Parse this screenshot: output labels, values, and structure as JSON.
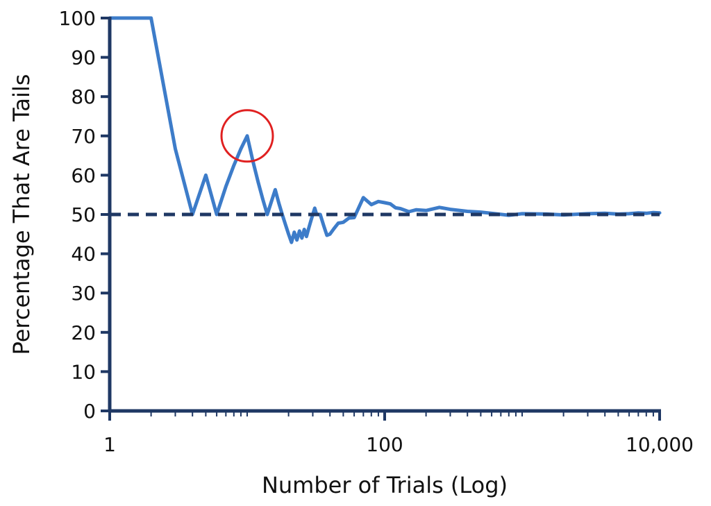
{
  "chart_data": {
    "type": "line",
    "title": "",
    "xlabel": "Number of Trials (Log)",
    "ylabel": "Percentage That Are Tails",
    "x_scale": "log",
    "xlim": [
      1,
      10000
    ],
    "ylim": [
      0,
      100
    ],
    "x_ticks": [
      {
        "value": 1,
        "label": "1"
      },
      {
        "value": 100,
        "label": "100"
      },
      {
        "value": 10000,
        "label": "10,000"
      }
    ],
    "y_ticks": [
      {
        "value": 0,
        "label": "0"
      },
      {
        "value": 10,
        "label": "10"
      },
      {
        "value": 20,
        "label": "20"
      },
      {
        "value": 30,
        "label": "30"
      },
      {
        "value": 40,
        "label": "40"
      },
      {
        "value": 50,
        "label": "50"
      },
      {
        "value": 60,
        "label": "60"
      },
      {
        "value": 70,
        "label": "70"
      },
      {
        "value": 80,
        "label": "80"
      },
      {
        "value": 90,
        "label": "90"
      },
      {
        "value": 100,
        "label": "100"
      }
    ],
    "grid": false,
    "legend": "none",
    "series": [
      {
        "color": "#3d7cc9",
        "style": "solid",
        "x": [
          1,
          2,
          3,
          4,
          5,
          6,
          7,
          8,
          9,
          10,
          11,
          12,
          13,
          14,
          15,
          16,
          17,
          18,
          19,
          20,
          21,
          22,
          23,
          24,
          25,
          26,
          27,
          28,
          29,
          30,
          31,
          32,
          34,
          36,
          38,
          40,
          43,
          46,
          50,
          55,
          60,
          70,
          80,
          90,
          100,
          110,
          120,
          130,
          150,
          170,
          200,
          250,
          300,
          400,
          500,
          600,
          800,
          1000,
          1500,
          2000,
          3000,
          4000,
          5000,
          6000,
          7000,
          8000,
          9000,
          10000
        ],
        "y": [
          100,
          100,
          66.7,
          50,
          60,
          50,
          57.1,
          62.5,
          66.7,
          70,
          63.6,
          58.3,
          53.8,
          50,
          53.3,
          56.3,
          52.9,
          50,
          47.4,
          45,
          42.9,
          45.5,
          43.5,
          45.8,
          44,
          46.2,
          44.4,
          46.4,
          48.3,
          50,
          51.6,
          50,
          50,
          47.2,
          44.7,
          45,
          46.5,
          47.8,
          48,
          49.1,
          49.2,
          54.3,
          52.5,
          53.3,
          53,
          52.7,
          51.7,
          51.5,
          50.7,
          51.2,
          51,
          51.8,
          51.3,
          50.8,
          50.6,
          50.3,
          49.8,
          50.2,
          50.1,
          49.9,
          50.2,
          50.3,
          50.1,
          50.2,
          50.4,
          50.3,
          50.5,
          50.4
        ]
      },
      {
        "color": "#1f3864",
        "style": "dashed",
        "x": [
          1,
          10000
        ],
        "y": [
          50,
          50
        ]
      }
    ],
    "annotations": [
      {
        "type": "circle",
        "x": 10,
        "y": 70,
        "color": "#e02020"
      }
    ]
  }
}
